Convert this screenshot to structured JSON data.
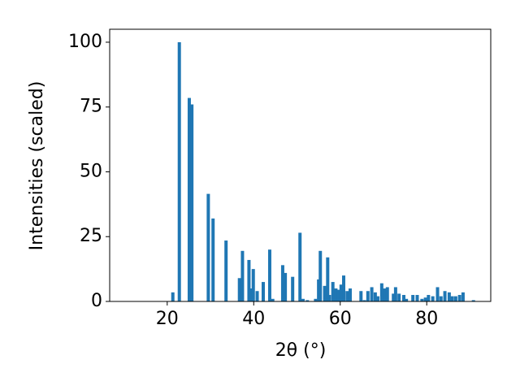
{
  "chart_data": {
    "type": "bar",
    "xlabel": "2θ (°)",
    "ylabel": "Intensities (scaled)",
    "x": [
      21.3,
      22.8,
      25.1,
      25.7,
      29.5,
      30.6,
      33.6,
      36.7,
      37.4,
      38.9,
      39.3,
      39.9,
      40.8,
      42.2,
      43.7,
      44.4,
      46.7,
      47.3,
      49.0,
      50.7,
      51.4,
      52.4,
      54.3,
      55.0,
      55.4,
      56.4,
      57.1,
      57.5,
      58.3,
      59.0,
      59.6,
      60.2,
      60.8,
      61.6,
      62.3,
      64.8,
      65.6,
      66.4,
      67.3,
      68.1,
      68.7,
      69.6,
      70.2,
      70.9,
      72.3,
      72.8,
      73.6,
      74.7,
      75.3,
      76.8,
      77.8,
      78.9,
      79.7,
      80.4,
      81.4,
      82.5,
      83.3,
      84.2,
      85.2,
      85.9,
      86.7,
      87.6,
      88.4,
      90.8
    ],
    "values": [
      3.5,
      100,
      78.5,
      76,
      41.5,
      32,
      23.5,
      9,
      19.5,
      16,
      5,
      12.5,
      4,
      7.5,
      20,
      1,
      14,
      11,
      9.5,
      26.5,
      1,
      0.5,
      1,
      8.5,
      19.5,
      6,
      17,
      2.5,
      7.5,
      5,
      4.5,
      6.5,
      10,
      4,
      5,
      4,
      0.5,
      4,
      5.5,
      3.5,
      2,
      7,
      5,
      5.5,
      3,
      5.5,
      3,
      2.5,
      1,
      2.5,
      2.5,
      1,
      1.5,
      2.5,
      2,
      5.5,
      2,
      4,
      3.5,
      2,
      2,
      2.5,
      3.5,
      0.5
    ],
    "color": "#1f77b4",
    "xlim": [
      6.7,
      94.8
    ],
    "xticks": [
      20,
      40,
      60,
      80
    ],
    "ylim": [
      0,
      105
    ],
    "yticks": [
      0,
      25,
      50,
      75,
      100
    ],
    "grid": false
  }
}
